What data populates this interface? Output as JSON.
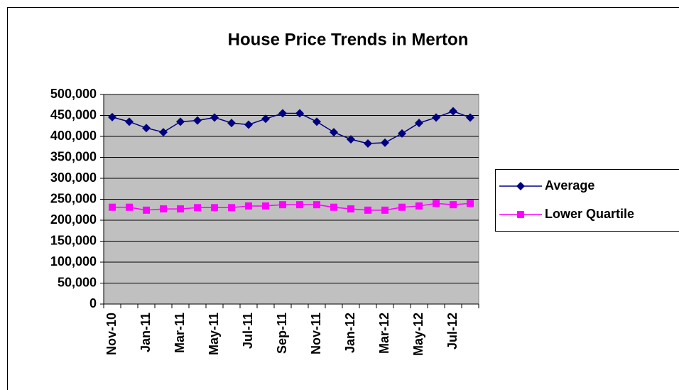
{
  "chart_data": {
    "type": "line",
    "title": "House Price Trends in Merton",
    "categories": [
      "Nov-10",
      null,
      "Jan-11",
      null,
      "Mar-11",
      null,
      "May-11",
      null,
      "Jul-11",
      null,
      "Sep-11",
      null,
      "Nov-11",
      null,
      "Jan-12",
      null,
      "Mar-12",
      null,
      "May-12",
      null,
      "Jul-12",
      null
    ],
    "series": [
      {
        "name": "Average",
        "color": "#000080",
        "marker": "diamond",
        "values": [
          446000,
          435000,
          420000,
          410000,
          435000,
          438000,
          445000,
          432000,
          428000,
          442000,
          455000,
          455000,
          435000,
          410000,
          393000,
          383000,
          385000,
          407000,
          432000,
          445000,
          460000,
          445000
        ]
      },
      {
        "name": "Lower Quartile",
        "color": "#ff00ff",
        "marker": "square",
        "values": [
          231000,
          231000,
          224000,
          227000,
          227000,
          230000,
          230000,
          230000,
          234000,
          234000,
          237000,
          237000,
          237000,
          231000,
          227000,
          224000,
          224000,
          231000,
          234000,
          240000,
          237000,
          240000
        ]
      }
    ],
    "ylim": [
      0,
      500000
    ],
    "yticks": [
      0,
      {
        "value": 50000,
        "label": "50,000"
      },
      {
        "value": 100000,
        "label": "100,000"
      },
      {
        "value": 150000,
        "label": "150,000"
      },
      {
        "value": 200000,
        "label": "200,000"
      },
      {
        "value": 250000,
        "label": "250,000"
      },
      {
        "value": 300000,
        "label": "300,000"
      },
      {
        "value": 350000,
        "label": "350,000"
      },
      {
        "value": 400000,
        "label": "400,000"
      },
      {
        "value": 450000,
        "label": "450,000"
      },
      {
        "value": 500000,
        "label": "500,000"
      }
    ],
    "grid": true,
    "plot_background": "#c0c0c0",
    "legend": "right"
  }
}
